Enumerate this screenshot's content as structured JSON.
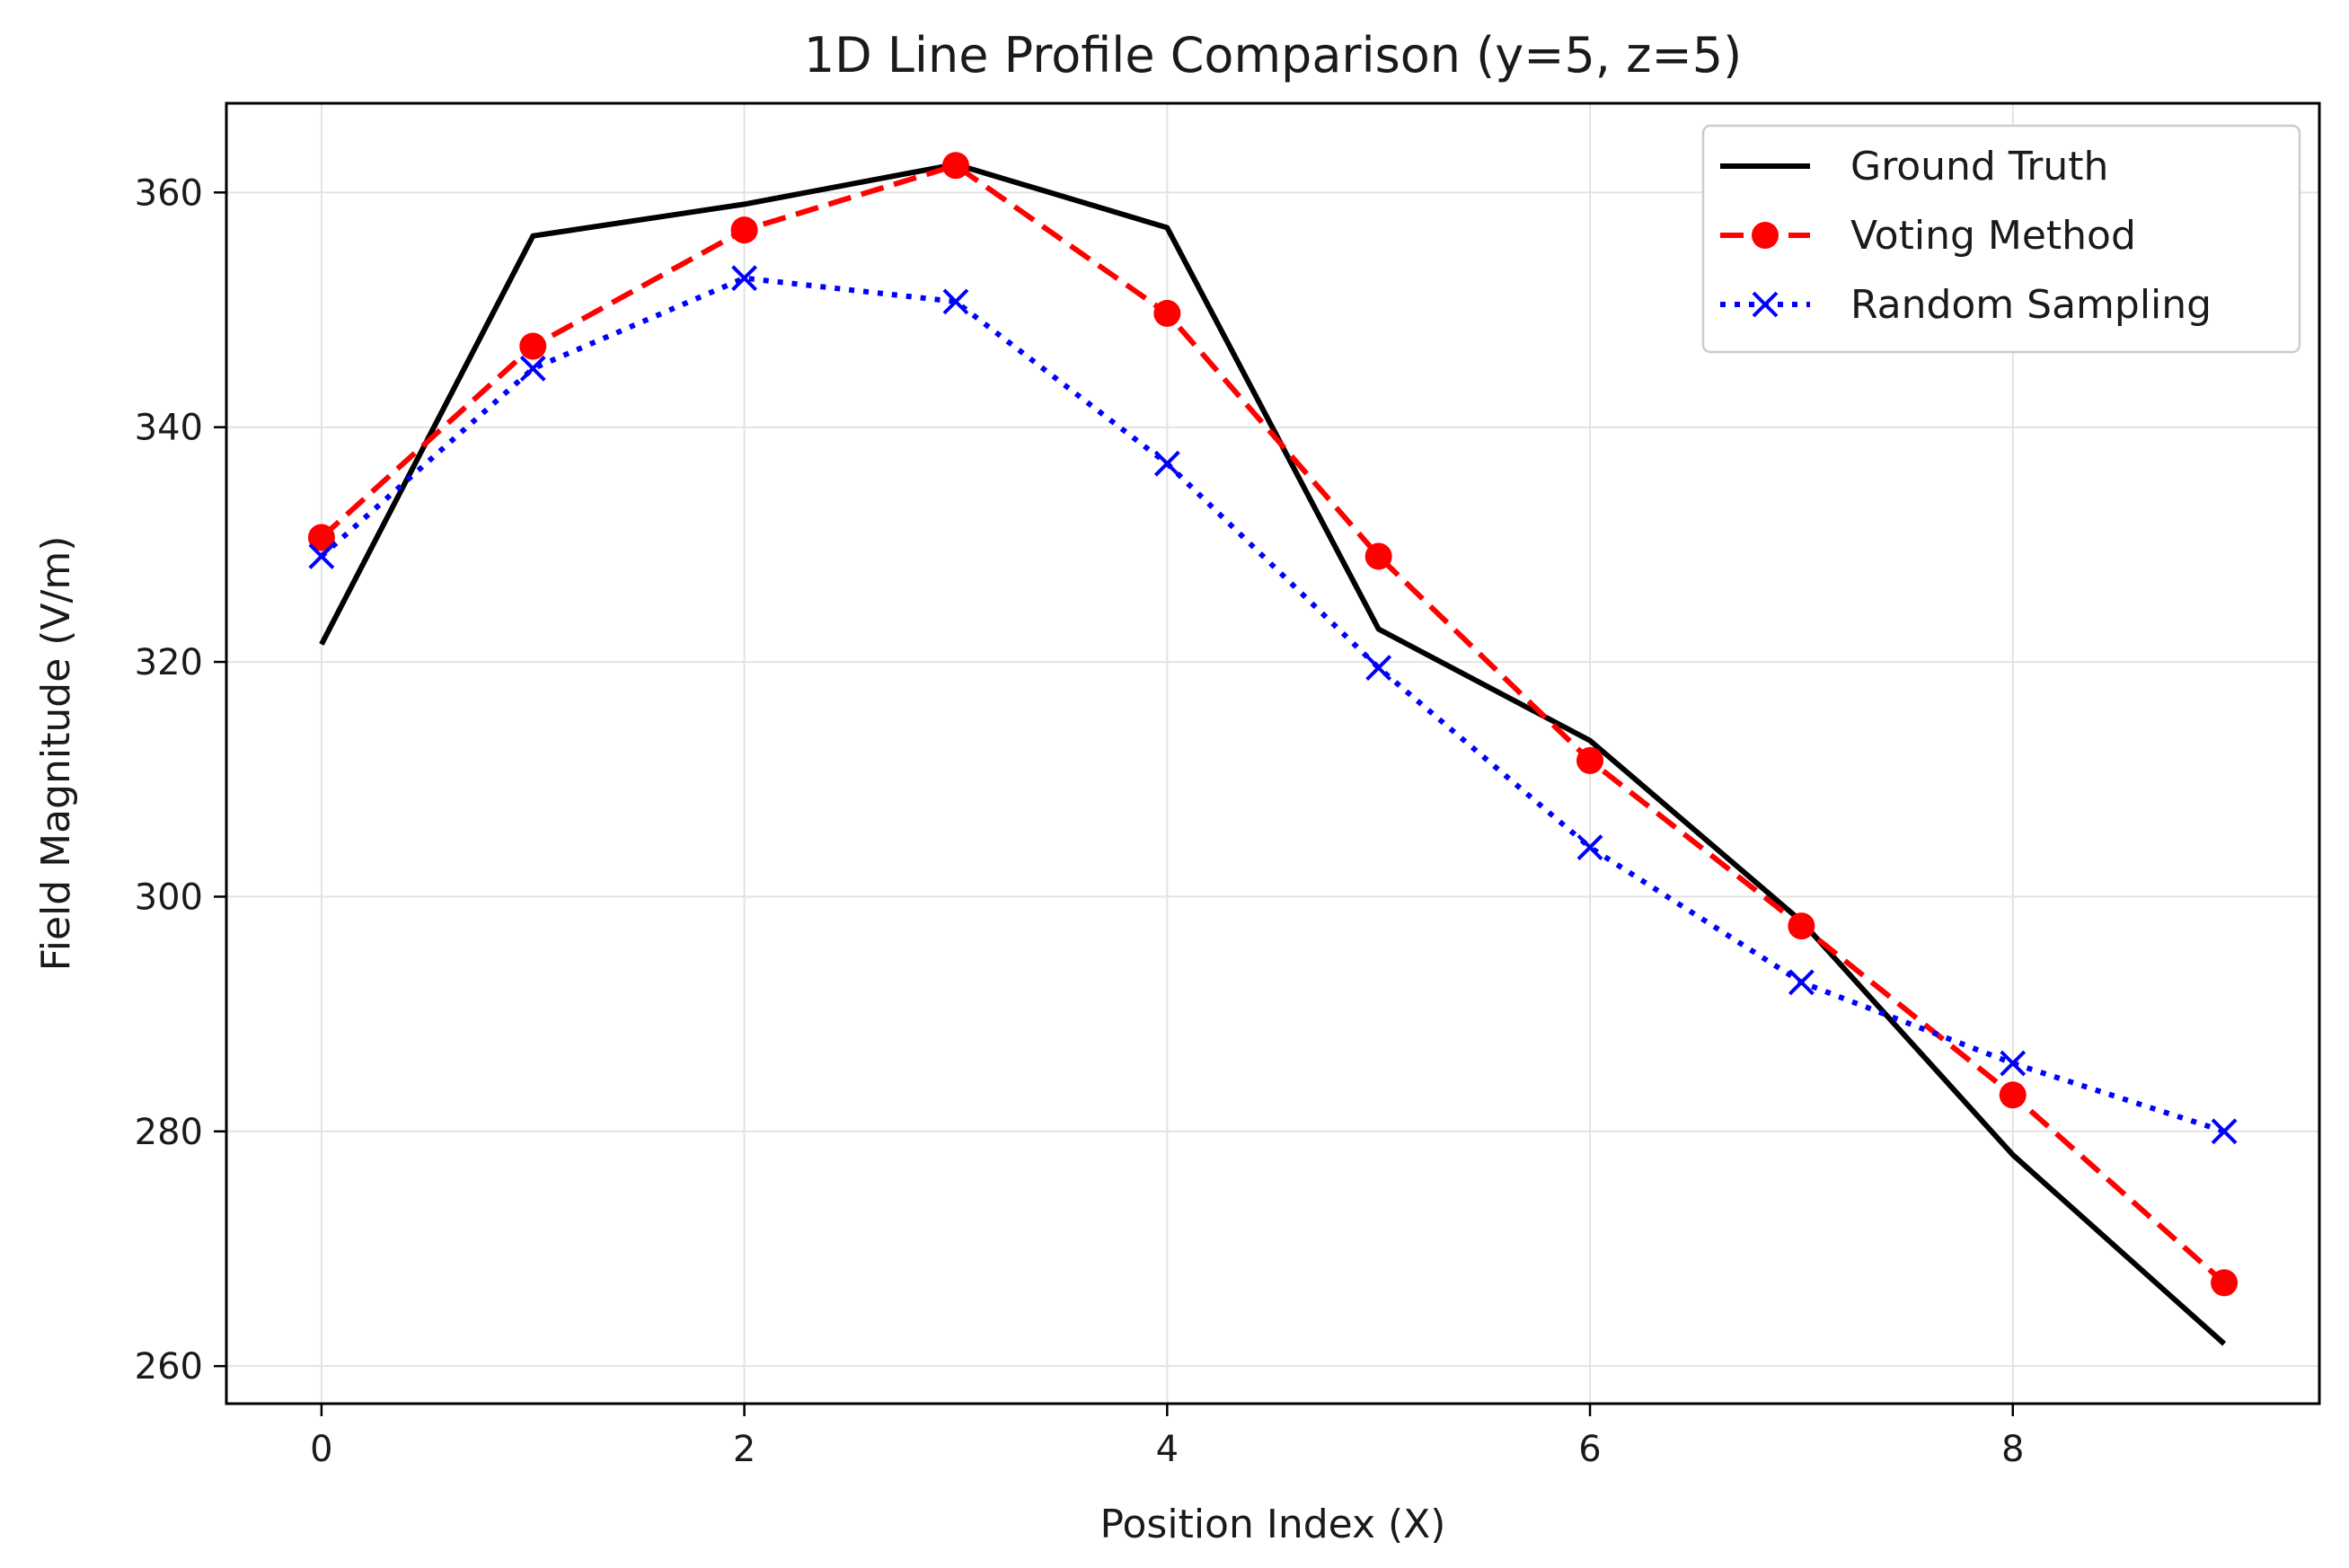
{
  "chart_data": {
    "type": "line",
    "title": "1D Line Profile Comparison (y=5, z=5)",
    "xlabel": "Position Index (X)",
    "ylabel": "Field Magnitude (V/m)",
    "xlim": [
      -0.45,
      9.45
    ],
    "ylim": [
      256.8,
      367.6
    ],
    "xticks": [
      0,
      2,
      4,
      6,
      8
    ],
    "yticks": [
      260,
      280,
      300,
      320,
      340,
      360
    ],
    "grid": true,
    "legend_position": "top-right",
    "x": [
      0,
      1,
      2,
      3,
      4,
      5,
      6,
      7,
      8,
      9
    ],
    "series": [
      {
        "name": "Ground Truth",
        "color": "#000000",
        "line_style": "solid",
        "marker": "none",
        "values": [
          321.5,
          356.3,
          359.0,
          362.4,
          357.0,
          322.8,
          313.3,
          297.9,
          278.0,
          261.9
        ]
      },
      {
        "name": "Voting Method",
        "color": "#ff0000",
        "line_style": "dashed",
        "marker": "circle",
        "values": [
          330.6,
          346.9,
          356.8,
          362.3,
          349.7,
          329.0,
          311.6,
          297.5,
          283.1,
          267.1
        ]
      },
      {
        "name": "Random Sampling",
        "color": "#0000ff",
        "line_style": "dotted",
        "marker": "x",
        "values": [
          329.0,
          345.0,
          352.7,
          350.7,
          336.9,
          319.5,
          304.2,
          292.7,
          285.8,
          280.0
        ]
      }
    ]
  }
}
